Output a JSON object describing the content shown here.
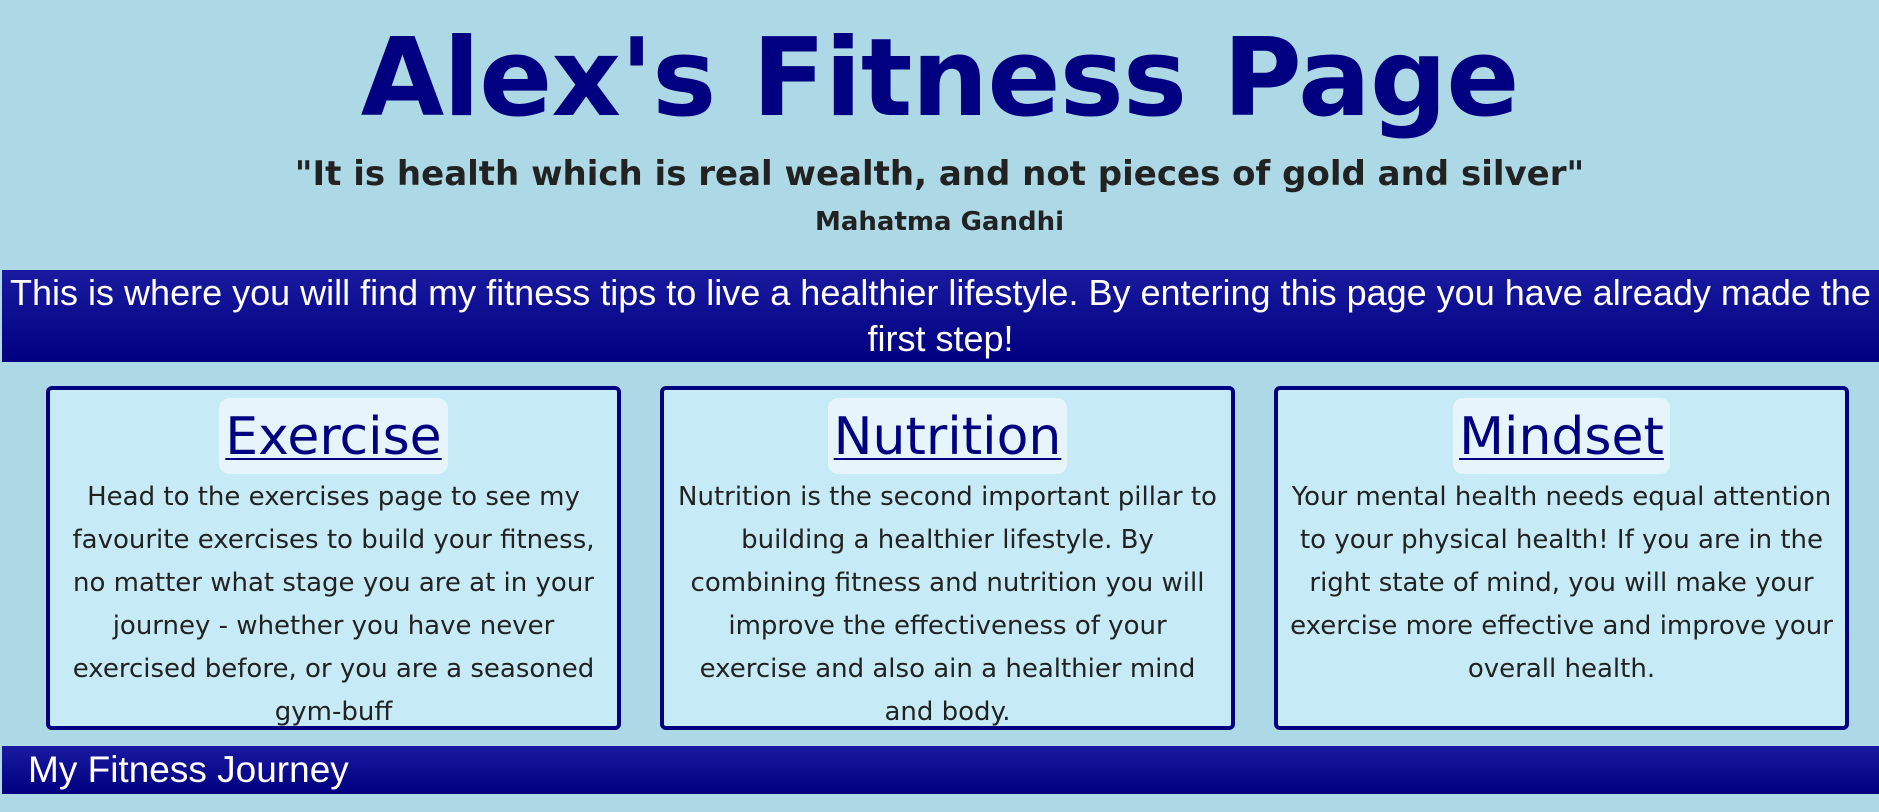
{
  "header": {
    "title": "Alex's Fitness Page",
    "quote": "\"It is health which is real wealth, and not pieces of gold and silver\"",
    "author": "Mahatma Gandhi"
  },
  "banner": {
    "text": "This is where you will find my fitness tips to live a healthier lifestyle. By entering this page you have already made the first step!"
  },
  "cards": [
    {
      "title": "Exercise",
      "text": "Head to the exercises page to see my favourite exercises to build your fitness, no matter what stage you are at in your journey - whether you have never exercised before, or you are a seasoned gym-buff"
    },
    {
      "title": "Nutrition",
      "text": "Nutrition is the second important pillar to building a healthier lifestyle. By combining fitness and nutrition you will improve the effectiveness of your exercise and also ain a healthier mind and body."
    },
    {
      "title": "Mindset",
      "text": "Your mental health needs equal attention to your physical health! If you are in the right state of mind, you will make your exercise more effective and improve your overall health."
    }
  ],
  "journey": {
    "title": "My Fitness Journey"
  },
  "colors": {
    "background": "#add8e6",
    "brand_navy": "#000080",
    "card_background": "#c6eaf6"
  }
}
